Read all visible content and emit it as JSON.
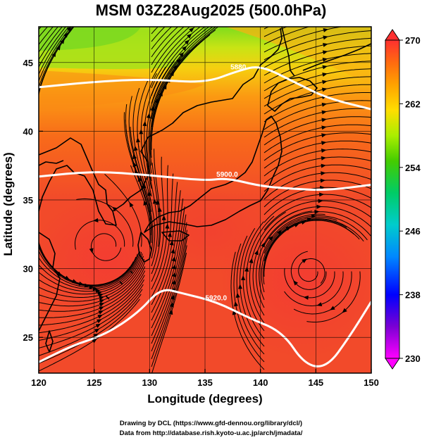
{
  "title": "MSM 03Z28Aug2025 (500.0hPa)",
  "x_axis": {
    "label": "Longitude (degrees)",
    "ticks": [
      120,
      125,
      130,
      135,
      140,
      145,
      150
    ],
    "range": [
      120,
      150
    ]
  },
  "y_axis": {
    "label": "Latitude  (degrees)",
    "ticks": [
      25,
      30,
      35,
      40,
      45
    ],
    "range": [
      22.4,
      47.6
    ]
  },
  "colorbar": {
    "min": 230,
    "max": 270,
    "labels": [
      "270",
      "262",
      "254",
      "246",
      "238",
      "230"
    ],
    "colors": [
      "#ff00ff",
      "#6600cc",
      "#0000ff",
      "#00aaff",
      "#00dddd",
      "#00cc66",
      "#33cc00",
      "#99ee00",
      "#ffee00",
      "#ffaa00",
      "#ff6600",
      "#ff3333"
    ]
  },
  "contours": [
    {
      "label": "5880",
      "lat_profile": [
        [
          120,
          43.2
        ],
        [
          125,
          43.6
        ],
        [
          130,
          43.8
        ],
        [
          135,
          43.5
        ],
        [
          138,
          44.4
        ],
        [
          140,
          44.8
        ],
        [
          143,
          43.6
        ],
        [
          146,
          42.4
        ],
        [
          150,
          41.6
        ]
      ]
    },
    {
      "label": "5900.0",
      "lat_profile": [
        [
          120,
          36.7
        ],
        [
          125,
          37.1
        ],
        [
          130,
          36.8
        ],
        [
          135,
          36.4
        ],
        [
          137,
          36.6
        ],
        [
          140,
          36.0
        ],
        [
          143,
          35.8
        ],
        [
          146,
          35.7
        ],
        [
          150,
          36.1
        ]
      ]
    },
    {
      "label": "5920.0",
      "lat_profile": [
        [
          120,
          23.2
        ],
        [
          123,
          24.4
        ],
        [
          126,
          25.2
        ],
        [
          129,
          26.8
        ],
        [
          131,
          28.6
        ],
        [
          133,
          28.2
        ],
        [
          136,
          27.6
        ],
        [
          139,
          26.4
        ],
        [
          142,
          25.4
        ],
        [
          144,
          23.0
        ],
        [
          146,
          22.8
        ],
        [
          148,
          25.0
        ],
        [
          150,
          27.6
        ]
      ]
    }
  ],
  "vortices": [
    {
      "name": "anticyclone-east",
      "lon": 144.4,
      "lat": 29.8
    },
    {
      "name": "circulation-west",
      "lon": 126.2,
      "lat": 31.6
    }
  ],
  "credits": {
    "line1": "Drawing by DCL (https://www.gfd-dennou.org/library/dcl/)",
    "line2": "Data from http://database.rish.kyoto-u.ac.jp/arch/jmadata/"
  }
}
